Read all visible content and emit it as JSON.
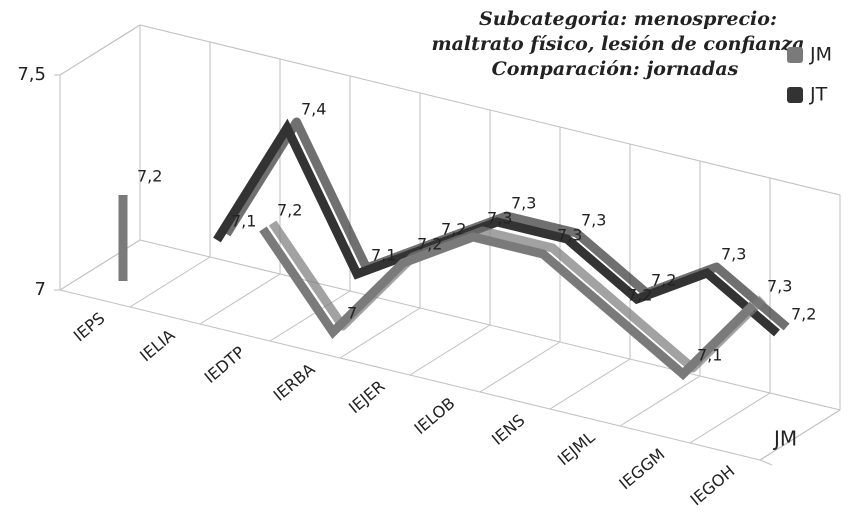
{
  "chart_data": {
    "type": "line3d",
    "title": [
      "Subcategoria: menosprecio:",
      "maltrato físico, lesión de confianza",
      "Comparación: jornadas"
    ],
    "categories": [
      "IEPS",
      "IELIA",
      "IEDTP",
      "IERBA",
      "IEJER",
      "IELOB",
      "IENS",
      "IEJML",
      "IEGGM",
      "IEGOH"
    ],
    "series": [
      {
        "name": "JM",
        "color": "#7a7a7a",
        "values": [
          7.2,
          null,
          7.2,
          7,
          7.2,
          7.3,
          7.3,
          7.2,
          7.1,
          7.3
        ],
        "value_labels": [
          "7,2",
          null,
          "7,2",
          "7",
          "7,2",
          "7,3",
          "7,3",
          "7,2",
          "7,1",
          "7,3"
        ]
      },
      {
        "name": "JT",
        "color": "#333333",
        "values": [
          null,
          7.1,
          7.4,
          7.1,
          7.2,
          7.3,
          7.3,
          7.2,
          7.3,
          7.2
        ],
        "value_labels": [
          null,
          "7,1",
          "7,4",
          "7,1",
          "7,2",
          "7,3",
          "7,3",
          "7,2",
          "7,3",
          "7,2"
        ]
      }
    ],
    "depth_labels": [
      "JM"
    ],
    "ylim": [
      7,
      7.5
    ],
    "yticks": [
      7,
      {
        "value": 7.5,
        "label": "7,5"
      }
    ],
    "grid": true,
    "legend": "right"
  }
}
